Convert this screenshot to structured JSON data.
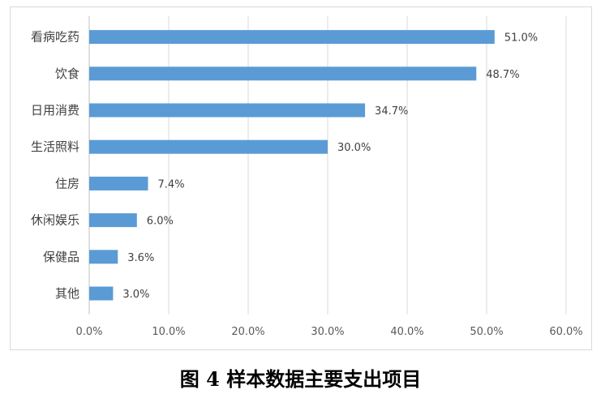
{
  "caption": "图 4  样本数据主要支出项目",
  "chart_data": {
    "type": "bar",
    "orientation": "horizontal",
    "categories": [
      "看病吃药",
      "饮食",
      "日用消费",
      "生活照料",
      "住房",
      "休闲娱乐",
      "保健品",
      "其他"
    ],
    "values": [
      51.0,
      48.7,
      34.7,
      30.0,
      7.4,
      6.0,
      3.6,
      3.0
    ],
    "data_labels": [
      "51.0%",
      "48.7%",
      "34.7%",
      "30.0%",
      "7.4%",
      "6.0%",
      "3.6%",
      "3.0%"
    ],
    "xlim": [
      0,
      60
    ],
    "x_ticks": [
      0,
      10,
      20,
      30,
      40,
      50,
      60
    ],
    "x_tick_labels": [
      "0.0%",
      "10.0%",
      "20.0%",
      "30.0%",
      "40.0%",
      "50.0%",
      "60.0%"
    ],
    "grid": true,
    "bar_color": "#5b9bd5",
    "grid_color": "#d9d9d9"
  }
}
